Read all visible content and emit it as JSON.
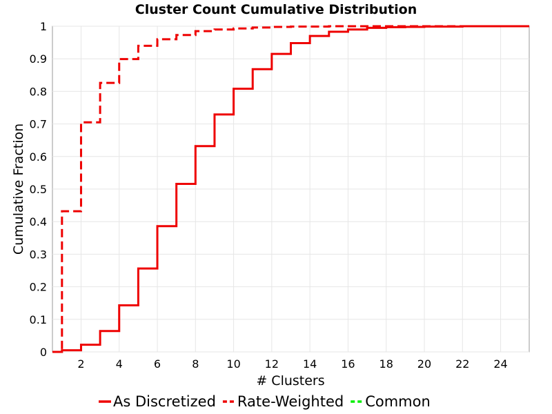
{
  "chart_data": {
    "type": "line",
    "step": true,
    "title": "Cluster Count Cumulative Distribution",
    "xlabel": "# Clusters",
    "ylabel": "Cumulative Fraction",
    "xlim": [
      0.5,
      25.5
    ],
    "ylim": [
      0,
      1
    ],
    "xticks": [
      2,
      4,
      6,
      8,
      10,
      12,
      14,
      16,
      18,
      20,
      22,
      24
    ],
    "yticks": [
      0,
      0.1,
      0.2,
      0.3,
      0.4,
      0.5,
      0.6,
      0.7,
      0.8,
      0.9,
      1
    ],
    "ytick_labels": [
      "0",
      "0.1",
      "0.2",
      "0.3",
      "0.4",
      "0.5",
      "0.6",
      "0.7",
      "0.8",
      "0.9",
      "1"
    ],
    "grid": true,
    "legend_position": "bottom",
    "series": [
      {
        "name": "As Discretized",
        "color": "#ee0000",
        "style": "solid",
        "x": [
          1,
          2,
          3,
          4,
          5,
          6,
          7,
          8,
          9,
          10,
          11,
          12,
          13,
          14,
          15,
          16,
          17,
          18,
          19,
          20,
          21,
          22,
          23,
          24,
          25
        ],
        "y": [
          0.005,
          0.022,
          0.064,
          0.143,
          0.256,
          0.386,
          0.516,
          0.632,
          0.729,
          0.808,
          0.868,
          0.915,
          0.948,
          0.97,
          0.983,
          0.99,
          0.995,
          0.997,
          0.998,
          0.999,
          0.999,
          1.0,
          1.0,
          1.0,
          1.0
        ]
      },
      {
        "name": "Rate-Weighted",
        "color": "#ee0000",
        "style": "dashed",
        "x": [
          1,
          2,
          3,
          4,
          5,
          6,
          7,
          8,
          9,
          10,
          11,
          12,
          13,
          14,
          15,
          16,
          17,
          18,
          19,
          20,
          21,
          22,
          23,
          24,
          25
        ],
        "y": [
          0.432,
          0.705,
          0.826,
          0.899,
          0.94,
          0.96,
          0.973,
          0.985,
          0.99,
          0.993,
          0.996,
          0.998,
          0.999,
          0.999,
          1.0,
          1.0,
          1.0,
          1.0,
          1.0,
          1.0,
          1.0,
          1.0,
          1.0,
          1.0,
          1.0
        ]
      },
      {
        "name": "Common",
        "color": "#00ee00",
        "style": "dashed",
        "x": [],
        "y": []
      }
    ]
  }
}
